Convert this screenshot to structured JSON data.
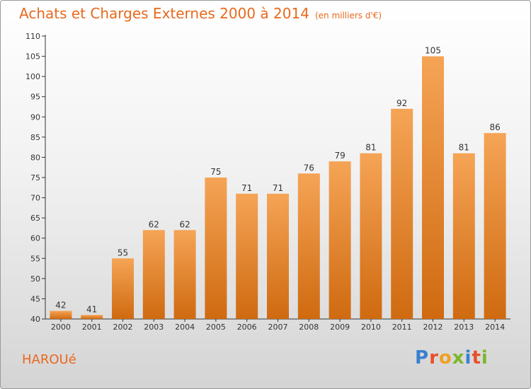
{
  "title": {
    "main": "Achats et Charges Externes 2000 à 2014",
    "unit": "(en milliers d'€)"
  },
  "commune": "HAROUé",
  "logo": {
    "text": "Proxiti",
    "colors": [
      "#3a7fd0",
      "#e8502a",
      "#f0a020",
      "#7ab828",
      "#3a7fd0",
      "#e8502a",
      "#7ab828"
    ]
  },
  "colors": {
    "accent": "#e8691e",
    "bar_top": "#f5a456",
    "bar_bottom": "#cf6a10"
  },
  "chart_data": {
    "type": "bar",
    "categories": [
      "2000",
      "2001",
      "2002",
      "2003",
      "2004",
      "2005",
      "2006",
      "2007",
      "2008",
      "2009",
      "2010",
      "2011",
      "2012",
      "2013",
      "2014"
    ],
    "values": [
      42,
      41,
      55,
      62,
      62,
      75,
      71,
      71,
      76,
      79,
      81,
      92,
      105,
      81,
      86
    ],
    "ylim": [
      40,
      110
    ],
    "yticks": [
      40,
      45,
      50,
      55,
      60,
      65,
      70,
      75,
      80,
      85,
      90,
      95,
      100,
      105,
      110
    ],
    "grid": false,
    "xlabel": "",
    "ylabel": ""
  }
}
